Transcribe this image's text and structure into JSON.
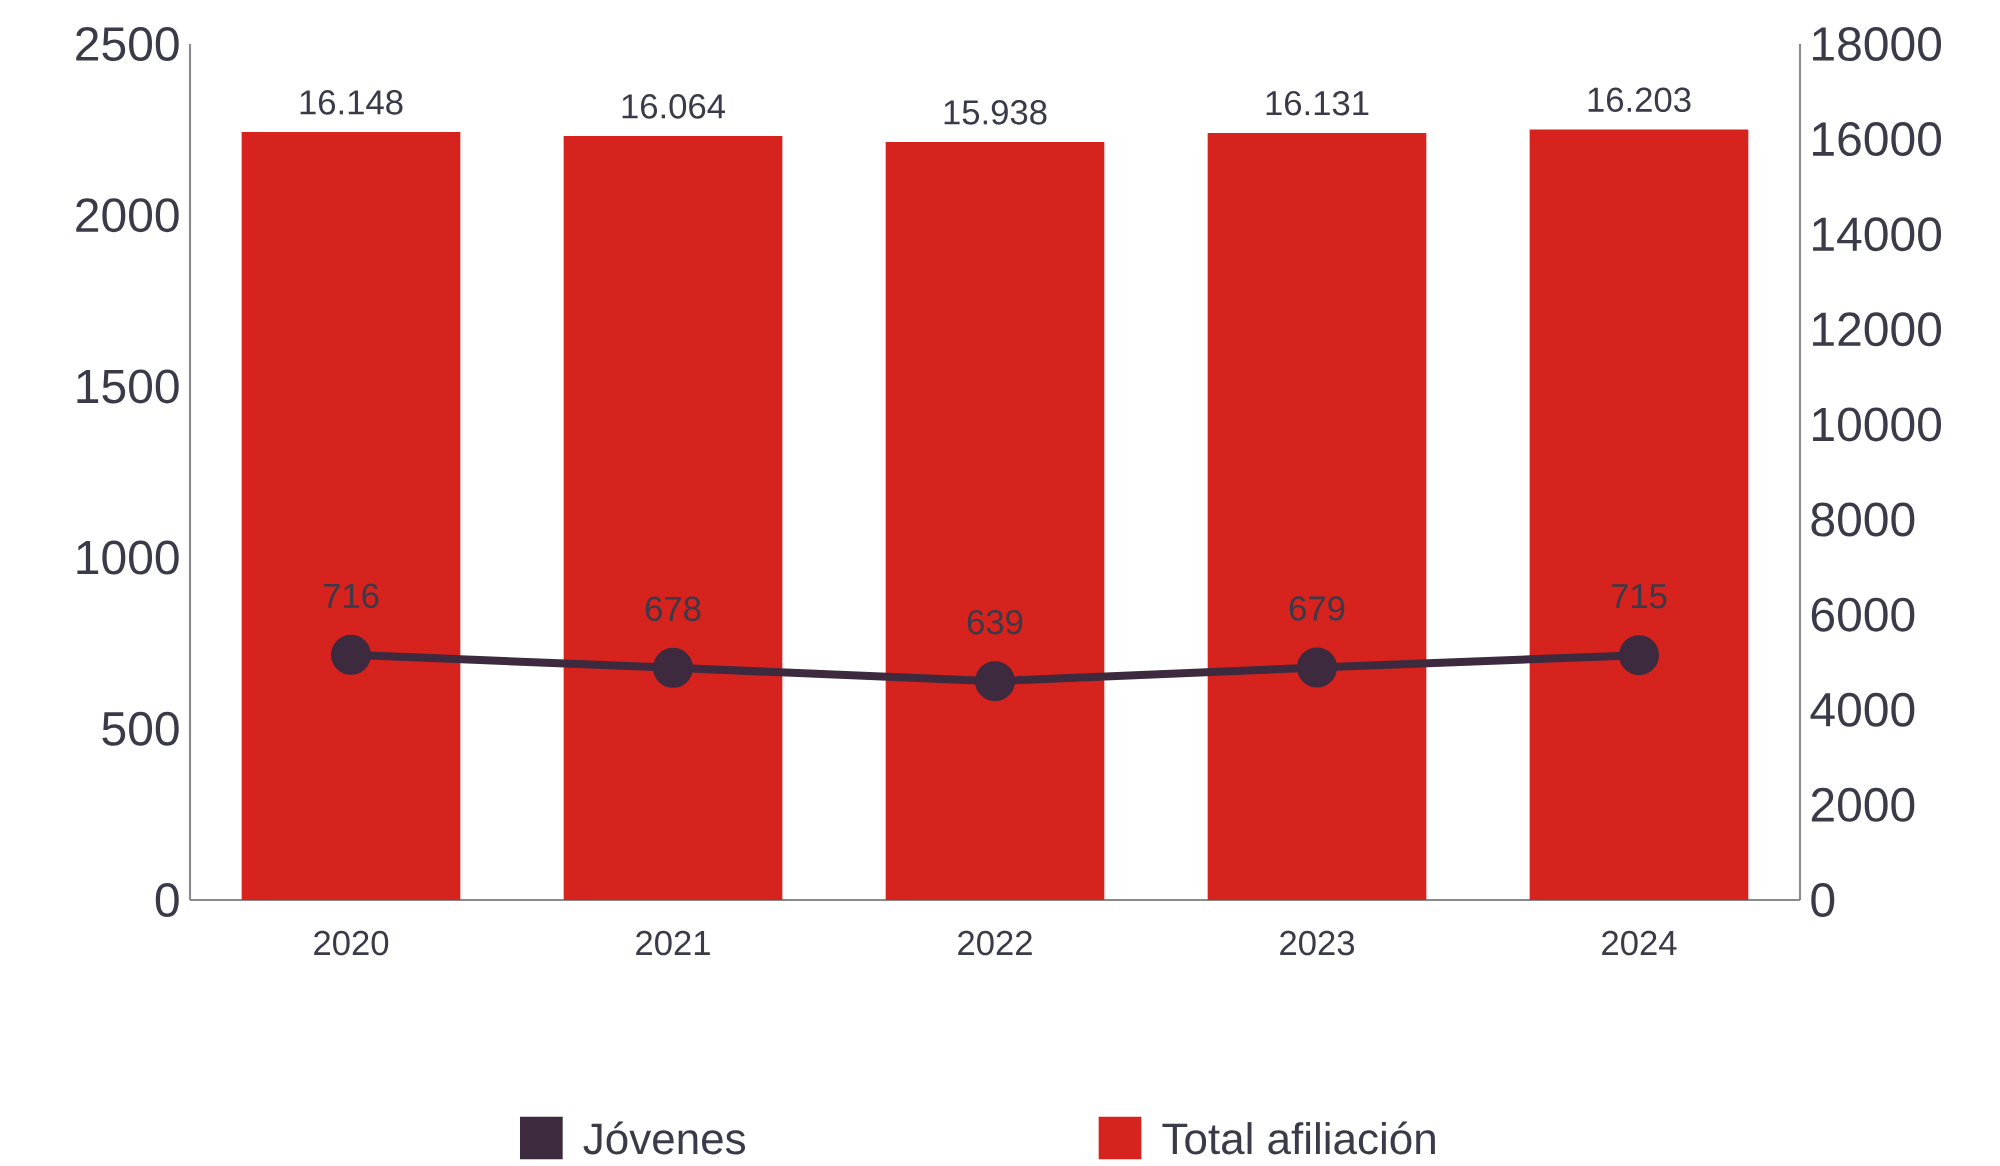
{
  "chart_data": {
    "type": "bar",
    "categories": [
      "2020",
      "2021",
      "2022",
      "2023",
      "2024"
    ],
    "series": [
      {
        "name": "Jóvenes",
        "type": "line",
        "color": "#3d2a3e",
        "marker": "circle",
        "values": [
          716,
          678,
          639,
          679,
          715
        ],
        "value_labels": [
          "716",
          "678",
          "639",
          "679",
          "715"
        ]
      },
      {
        "name": "Total afiliación",
        "axis": "y2",
        "color": "#d7231e",
        "values": [
          16148,
          16064,
          15938,
          16131,
          16203
        ],
        "value_labels": [
          "16.148",
          "16.064",
          "15.938",
          "16.131",
          "16.203"
        ]
      }
    ],
    "ylim": [
      0,
      2500
    ],
    "yticks": [
      0,
      500,
      1000,
      1500,
      2000,
      2500
    ],
    "y2lim": [
      0,
      18000
    ],
    "y2ticks": [
      0,
      2000,
      4000,
      6000,
      8000,
      10000,
      12000,
      14000,
      16000,
      18000
    ],
    "grid": false,
    "legend": "bottom"
  }
}
